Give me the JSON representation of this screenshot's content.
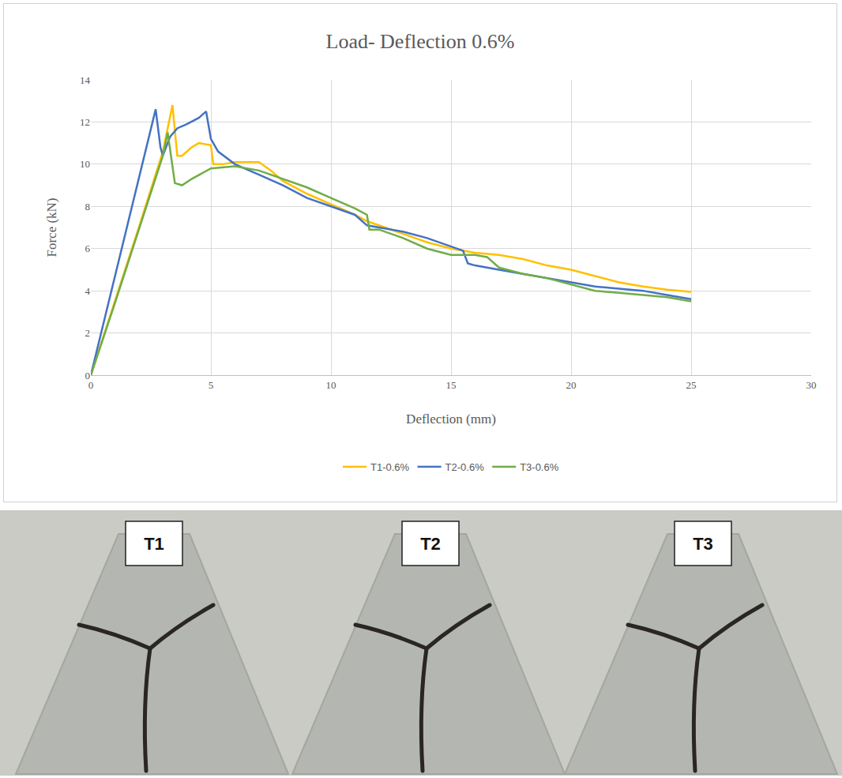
{
  "chart_data": {
    "type": "line",
    "title": "Load- Deflection 0.6%",
    "x_label": "Deflection (mm)",
    "y_label": "Force (kN)",
    "xlim": [
      0,
      30
    ],
    "xticks": [
      0,
      5,
      10,
      15,
      20,
      25,
      30
    ],
    "ylim": [
      0,
      14
    ],
    "yticks": [
      0,
      2,
      4,
      6,
      8,
      10,
      12,
      14
    ],
    "grid": true,
    "legend": "bottom",
    "series": [
      {
        "name": "T1-0.6%",
        "color": "#FFC000",
        "x": [
          0,
          1,
          2,
          3,
          3.4,
          3.6,
          3.8,
          4.2,
          4.5,
          5,
          5.1,
          5.5,
          6,
          7,
          7.5,
          8,
          9,
          10,
          11,
          11.5,
          12,
          13,
          14,
          15,
          16,
          17,
          17.5,
          18,
          19,
          20,
          21,
          22,
          23,
          24,
          25
        ],
        "values": [
          0,
          3.5,
          7,
          10.6,
          12.8,
          10.4,
          10.4,
          10.8,
          11,
          10.9,
          10,
          10,
          10.1,
          10.1,
          9.7,
          9.2,
          8.6,
          8.1,
          7.6,
          7.3,
          7.1,
          6.7,
          6.3,
          6,
          5.8,
          5.7,
          5.6,
          5.5,
          5.2,
          5.0,
          4.7,
          4.4,
          4.2,
          4.05,
          3.95
        ]
      },
      {
        "name": "T2-0.6%",
        "color": "#4472C4",
        "x": [
          0,
          1,
          2,
          2.7,
          2.9,
          3,
          3.3,
          3.6,
          4,
          4.5,
          4.8,
          5,
          5.3,
          6,
          7,
          8,
          9,
          10,
          11,
          11.5,
          12,
          13,
          14,
          15,
          15.5,
          15.7,
          16,
          17,
          18,
          19,
          20,
          21,
          22,
          23,
          24,
          25
        ],
        "values": [
          0,
          4.7,
          9.3,
          12.6,
          10.8,
          10.4,
          11.3,
          11.7,
          11.9,
          12.2,
          12.5,
          11.2,
          10.6,
          10,
          9.5,
          9,
          8.4,
          8,
          7.6,
          7.1,
          7.0,
          6.8,
          6.5,
          6.1,
          5.9,
          5.3,
          5.2,
          5.0,
          4.8,
          4.6,
          4.4,
          4.2,
          4.1,
          4.0,
          3.8,
          3.6
        ]
      },
      {
        "name": "T3-0.6%",
        "color": "#70AD47",
        "x": [
          0,
          1,
          2,
          3,
          3.2,
          3.5,
          3.8,
          4.2,
          5,
          6,
          7,
          8,
          9,
          10,
          11,
          11.5,
          11.6,
          12,
          13,
          14,
          15,
          16,
          16.5,
          17,
          18,
          19,
          20,
          21,
          22,
          23,
          24,
          25
        ],
        "values": [
          0,
          3.4,
          6.9,
          10.4,
          11.5,
          9.1,
          9.0,
          9.3,
          9.8,
          9.9,
          9.7,
          9.3,
          8.9,
          8.4,
          7.9,
          7.6,
          6.9,
          6.9,
          6.5,
          6.0,
          5.7,
          5.7,
          5.6,
          5.1,
          4.8,
          4.6,
          4.3,
          4.0,
          3.9,
          3.8,
          3.7,
          3.5
        ]
      }
    ]
  },
  "photo": {
    "labels": [
      "T1",
      "T2",
      "T3"
    ]
  }
}
